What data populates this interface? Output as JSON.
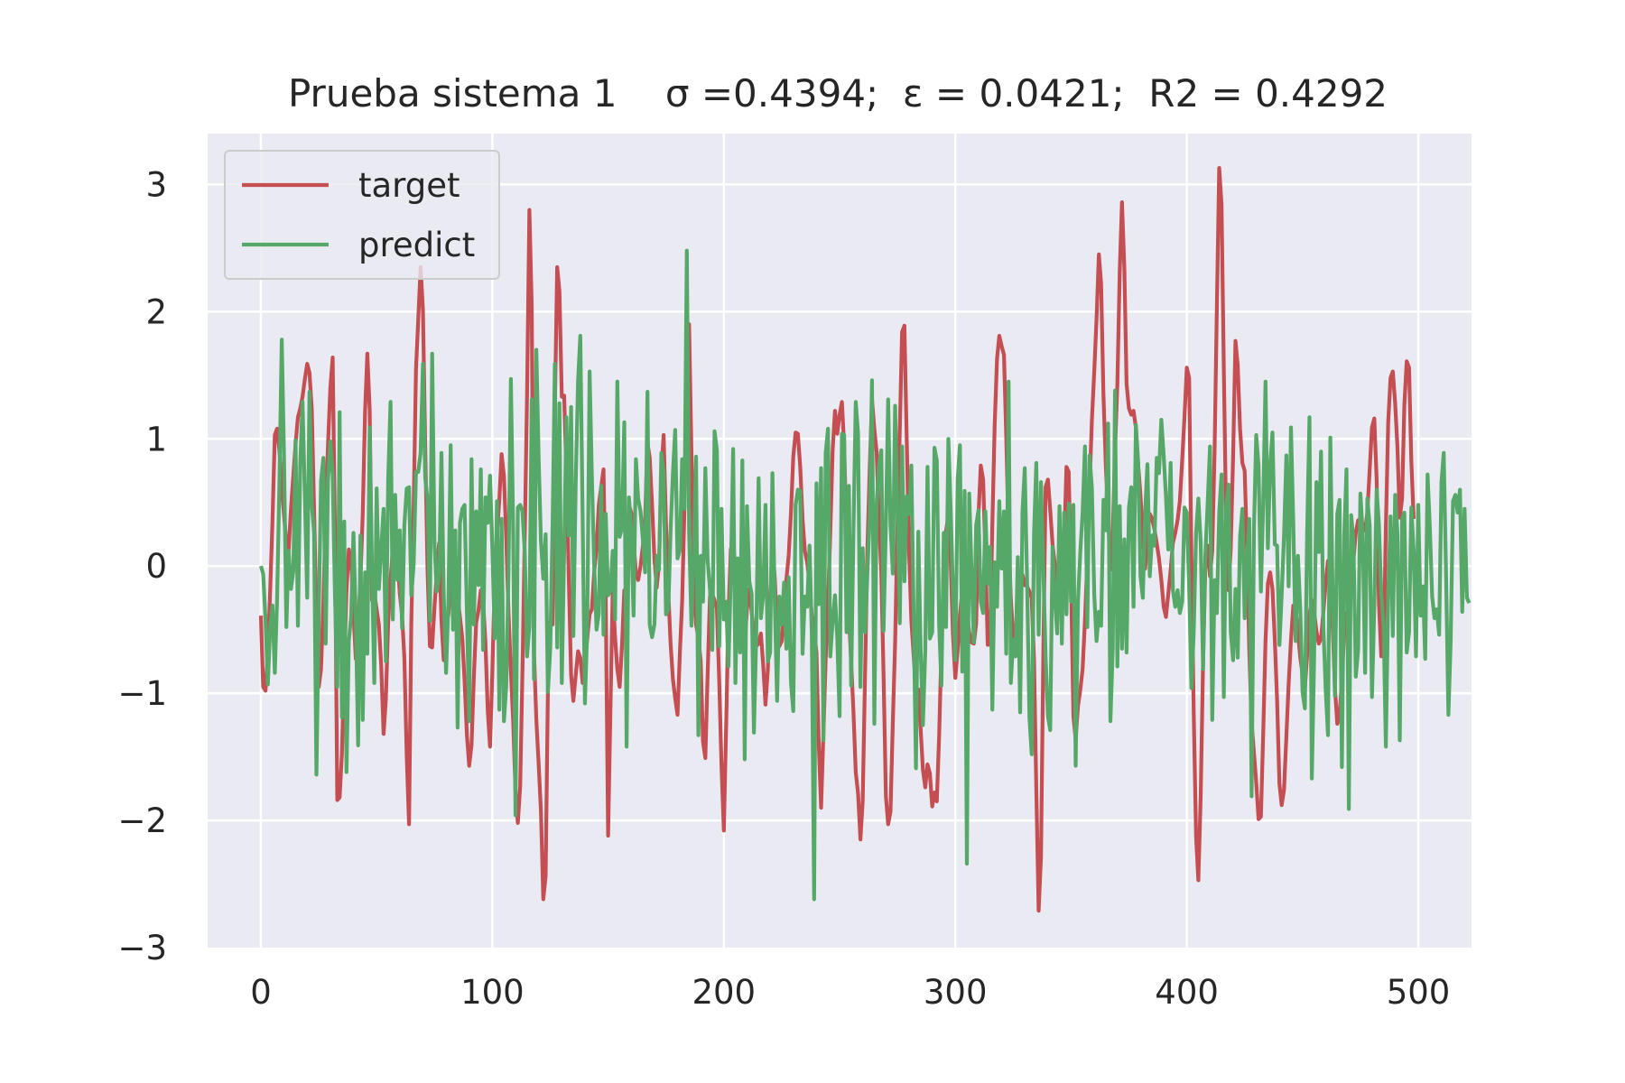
{
  "chart_data": {
    "type": "line",
    "title": "Prueba sistema 1    σ =0.4394;  ε = 0.0421;  R2 = 0.4292",
    "xlabel": "",
    "ylabel": "",
    "xlim": [
      -23,
      523
    ],
    "ylim": [
      -3,
      3.4
    ],
    "x_ticks": [
      0,
      100,
      200,
      300,
      400,
      500
    ],
    "x_tick_labels": [
      "0",
      "100",
      "200",
      "300",
      "400",
      "500"
    ],
    "y_ticks": [
      3,
      2,
      1,
      0,
      -1,
      -2,
      -3
    ],
    "y_tick_labels": [
      "3",
      "2",
      "1",
      "0",
      "−1",
      "−2",
      "−3"
    ],
    "grid": true,
    "legend_position": "top-left",
    "x_start": 0,
    "x_step": 1,
    "series": [
      {
        "name": "target",
        "color": "#c44e52",
        "values": [
          -0.39,
          -0.95,
          -0.98,
          -0.68,
          -0.21,
          0.35,
          1.03,
          1.08,
          0.91,
          0.62,
          0.4,
          0.18,
          0.12,
          0.45,
          0.71,
          0.96,
          1.17,
          1.24,
          1.33,
          1.47,
          1.59,
          1.52,
          1.23,
          0.45,
          -0.4,
          -0.95,
          -0.81,
          -0.3,
          0.44,
          0.95,
          1.4,
          1.64,
          0.28,
          -1.84,
          -1.82,
          -1.48,
          -0.81,
          -0.19,
          0.13,
          0.04,
          -0.36,
          -0.73,
          -0.48,
          -0.12,
          0.41,
          1.22,
          1.67,
          1.23,
          -0.27,
          -0.21,
          -0.34,
          -0.46,
          -0.79,
          -1.32,
          -1.05,
          -0.44,
          -0.11,
          0.13,
          0.21,
          0.08,
          -0.21,
          -0.39,
          -0.72,
          -1.49,
          -2.03,
          -0.45,
          0.46,
          1.55,
          1.94,
          2.35,
          2.01,
          0.94,
          -0.04,
          -0.63,
          -0.64,
          -0.32,
          -0.06,
          0.18,
          -0.43,
          -0.74,
          -0.49,
          -0.38,
          -0.11,
          0.18,
          0.08,
          -0.24,
          -0.4,
          -0.57,
          -0.9,
          -1.33,
          -1.57,
          -1.41,
          -0.87,
          -0.45,
          -0.35,
          -0.19,
          -0.27,
          -0.6,
          -1.14,
          -1.42,
          -0.83,
          -0.1,
          0.25,
          0.52,
          0.88,
          0.71,
          0.21,
          -0.37,
          -0.83,
          -1.23,
          -1.77,
          -2.02,
          -1.73,
          -0.83,
          0.25,
          1.34,
          2.8,
          2.04,
          -0.68,
          -1.21,
          -1.56,
          -1.93,
          -2.62,
          -2.44,
          -0.98,
          -0.44,
          -0.46,
          1.24,
          2.35,
          2.16,
          1.33,
          1.34,
          0.74,
          -0.08,
          -0.86,
          -1.06,
          -0.86,
          -0.67,
          -0.72,
          -0.92,
          -0.79,
          -0.57,
          -0.38,
          -0.34,
          -0.05,
          0.15,
          0.48,
          0.62,
          0.76,
          -0.29,
          -2.12,
          -1.12,
          -0.2,
          -0.56,
          -0.81,
          -0.95,
          -0.62,
          -0.19,
          -0.24,
          0.48,
          0.42,
          0.19,
          -0.05,
          -0.11,
          0.0,
          0.16,
          0.37,
          0.97,
          0.85,
          0.48,
          0.06,
          -0.17,
          0.02,
          0.75,
          1.03,
          0.33,
          -0.21,
          -0.61,
          -0.89,
          -1.04,
          -1.17,
          -0.68,
          -0.28,
          0.47,
          1.36,
          1.9,
          0.9,
          -0.05,
          -0.46,
          -0.56,
          -0.75,
          -1.38,
          -1.51,
          -0.86,
          -0.24,
          -0.22,
          -0.27,
          -0.33,
          -0.91,
          -1.57,
          -2.08,
          -1.24,
          -0.39,
          0.13,
          0.21,
          -0.05,
          -0.33,
          -0.54,
          -0.64,
          -0.61,
          -0.34,
          -0.18,
          -0.36,
          -0.53,
          -0.63,
          -0.61,
          -0.53,
          -0.78,
          -1.09,
          -0.82,
          -0.3,
          0.12,
          -0.09,
          -0.51,
          -0.63,
          -0.59,
          -0.36,
          -0.11,
          0.08,
          0.43,
          0.86,
          1.05,
          1.04,
          0.78,
          0.37,
          0.12,
          0.03,
          -0.13,
          -0.39,
          -0.51,
          -0.68,
          -1.39,
          -1.9,
          -1.32,
          -0.73,
          -0.28,
          0.26,
          0.91,
          1.22,
          1.04,
          1.19,
          1.29,
          0.94,
          0.23,
          -0.38,
          -0.75,
          -1.15,
          -1.62,
          -1.79,
          -2.15,
          -1.85,
          -0.86,
          0.13,
          0.75,
          1.31,
          1.08,
          0.9,
          0.36,
          -0.05,
          -0.85,
          -1.81,
          -2.03,
          -1.93,
          -1.22,
          -0.61,
          0.31,
          1.07,
          1.84,
          1.89,
          0.99,
          0.13,
          -0.43,
          -0.71,
          -0.98,
          -0.97,
          -1.27,
          -1.6,
          -1.74,
          -1.56,
          -1.63,
          -1.89,
          -1.78,
          -1.85,
          -1.33,
          -0.65,
          -0.08,
          0.27,
          0.4,
          0.03,
          -0.54,
          -0.88,
          -0.66,
          -0.38,
          -0.2,
          -0.13,
          -0.36,
          -0.52,
          -0.6,
          -0.61,
          -0.45,
          0.39,
          0.79,
          0.68,
          0.11,
          -0.62,
          -0.61,
          0.32,
          1.11,
          1.63,
          1.81,
          1.73,
          1.66,
          1.02,
          0.23,
          -0.26,
          -0.55,
          -0.69,
          -0.53,
          -0.25,
          -0.07,
          -0.15,
          -0.16,
          -0.2,
          -0.25,
          -0.74,
          -1.75,
          -2.71,
          -2.28,
          -0.73,
          0.62,
          0.68,
          0.44,
          0.17,
          0.01,
          -0.12,
          -0.27,
          -0.24,
          0.15,
          0.78,
          0.74,
          -0.11,
          -1.18,
          -1.36,
          -1.1,
          -0.97,
          -0.81,
          -0.43,
          0.05,
          0.62,
          1.15,
          1.53,
          1.94,
          2.45,
          2.22,
          1.34,
          0.79,
          0.41,
          -0.03,
          0.24,
          0.91,
          1.43,
          2.31,
          2.86,
          2.35,
          1.43,
          1.24,
          1.19,
          1.22,
          1.09,
          0.79,
          0.56,
          0.21,
          -0.02,
          0.25,
          0.41,
          0.37,
          0.29,
          0.18,
          0.06,
          -0.11,
          -0.32,
          -0.4,
          -0.22,
          -0.03,
          0.18,
          0.26,
          0.36,
          0.51,
          0.83,
          1.18,
          1.56,
          1.48,
          0.07,
          -1.16,
          -2.13,
          -2.47,
          -1.81,
          -0.77,
          -0.02,
          0.16,
          -0.08,
          0.12,
          0.91,
          2.03,
          3.13,
          2.84,
          1.56,
          0.33,
          -0.19,
          0.14,
          0.86,
          1.77,
          1.58,
          1.08,
          0.81,
          0.75,
          0.14,
          -0.66,
          -1.23,
          -1.47,
          -1.7,
          -1.99,
          -1.97,
          -1.33,
          -0.59,
          -0.14,
          -0.05,
          -0.18,
          -0.58,
          -1.05,
          -1.71,
          -1.88,
          -1.76,
          -1.34,
          -0.93,
          -0.58,
          -0.31,
          -0.34,
          -0.52,
          -0.72,
          -0.85,
          -0.96,
          -0.7,
          -0.38,
          -0.27,
          -0.36,
          -0.51,
          -0.61,
          -0.57,
          -0.36,
          -0.13,
          0.04,
          -0.08,
          -0.48,
          -0.96,
          -1.24,
          -1.18,
          -0.89,
          -0.52,
          -0.37,
          -0.33,
          -0.2,
          0.05,
          0.26,
          0.36,
          0.34,
          0.33,
          0.28,
          0.42,
          0.76,
          1.09,
          1.16,
          0.68,
          -0.29,
          -0.71,
          -0.66,
          0.3,
          1.13,
          1.48,
          1.53,
          1.28,
          0.94,
          0.38,
          0.53,
          1.27,
          1.61,
          1.56,
          0.83,
          0.37
        ]
      },
      {
        "name": "predict",
        "color": "#55a868",
        "values": [
          0.0,
          -0.06,
          -0.42,
          -0.93,
          -0.49,
          -0.31,
          -0.84,
          -0.27,
          0.65,
          1.78,
          0.87,
          -0.48,
          0.12,
          -0.18,
          -0.04,
          0.99,
          -0.47,
          0.81,
          1.29,
          0.55,
          -0.25,
          1.37,
          0.48,
          0.26,
          -1.64,
          -0.39,
          0.67,
          0.85,
          -0.61,
          0.67,
          0.98,
          0.72,
          -0.22,
          -0.95,
          1.21,
          -1.19,
          0.35,
          -1.62,
          -0.59,
          -0.39,
          0.26,
          -0.4,
          -1.41,
          0.24,
          -1.21,
          -0.05,
          -0.69,
          1.09,
          -0.04,
          -0.92,
          0.61,
          -0.18,
          0.14,
          0.45,
          -0.75,
          0.68,
          1.29,
          -0.42,
          0.56,
          -0.11,
          0.28,
          -0.49,
          0.32,
          0.61,
          0.62,
          -0.23,
          0.01,
          0.74,
          0.74,
          0.89,
          1.59,
          0.69,
          0.52,
          -0.43,
          1.67,
          0.17,
          -0.2,
          -0.07,
          0.89,
          -0.22,
          -0.84,
          -0.28,
          0.95,
          -0.5,
          0.28,
          -1.27,
          0.34,
          0.45,
          0.48,
          -0.37,
          -1.22,
          0.84,
          -0.46,
          0.43,
          -0.15,
          0.76,
          -0.66,
          0.54,
          0.34,
          0.71,
          0.14,
          -0.57,
          0.51,
          -1.13,
          0.37,
          -1.22,
          -0.94,
          -0.03,
          1.47,
          0.26,
          -1.96,
          0.46,
          0.48,
          0.43,
          0.11,
          -0.71,
          -0.47,
          1.31,
          -0.89,
          1.7,
          0.84,
          0.19,
          -0.1,
          0.25,
          -0.99,
          -0.65,
          0.32,
          1.59,
          -0.64,
          1.28,
          -0.92,
          0.12,
          1.17,
          0.24,
          1.25,
          -0.55,
          0.65,
          1.45,
          1.81,
          0.38,
          -1.08,
          -0.48,
          1.53,
          0.71,
          0.0,
          -0.5,
          -0.37,
          0.63,
          -0.54,
          0.41,
          -0.23,
          -0.19,
          0.12,
          -0.42,
          1.45,
          0.23,
          0.3,
          1.13,
          -1.42,
          0.54,
          0.28,
          -0.39,
          0.84,
          0.53,
          0.43,
          0.21,
          -0.05,
          1.37,
          -0.46,
          -0.56,
          -0.46,
          0.08,
          -0.03,
          0.89,
          0.74,
          -0.38,
          -0.34,
          0.28,
          0.73,
          1.07,
          0.06,
          0.13,
          0.84,
          0.45,
          2.48,
          0.27,
          -0.47,
          0.12,
          0.86,
          -1.33,
          0.08,
          -0.28,
          0.77,
          0.05,
          -0.18,
          -0.66,
          1.06,
          0.91,
          -0.63,
          0.45,
          -0.42,
          -0.28,
          -0.79,
          -0.09,
          0.92,
          -0.92,
          0.06,
          -0.68,
          0.83,
          -1.52,
          0.47,
          -0.12,
          -0.22,
          -1.31,
          -0.54,
          0.69,
          -0.41,
          -0.23,
          0.48,
          -0.75,
          -0.68,
          0.73,
          -0.28,
          -1.06,
          -0.24,
          -0.46,
          -0.13,
          -0.65,
          -0.09,
          -0.92,
          -1.14,
          0.48,
          0.6,
          0.59,
          -0.69,
          -0.24,
          -0.32,
          0.16,
          -0.53,
          -2.62,
          0.65,
          -0.3,
          0.77,
          -1.37,
          0.89,
          1.08,
          -0.71,
          -0.44,
          -0.23,
          -0.56,
          -1.18,
          1.04,
          1.03,
          -0.52,
          0.63,
          -0.94,
          0.29,
          1.29,
          1.04,
          -0.95,
          0.14,
          -0.52,
          -0.06,
          0.38,
          1.46,
          -1.24,
          0.48,
          0.79,
          0.91,
          -0.51,
          0.32,
          1.31,
          0.32,
          -0.06,
          1.26,
          0.46,
          -0.45,
          0.94,
          -0.12,
          0.55,
          0.41,
          0.79,
          -0.42,
          -1.59,
          0.27,
          -0.63,
          -1.25,
          -0.67,
          0.78,
          -0.57,
          -0.52,
          0.93,
          0.83,
          -0.46,
          -0.94,
          0.26,
          -0.48,
          1.0,
          0.44,
          -0.21,
          -0.74,
          0.68,
          0.95,
          -0.83,
          0.59,
          -2.34,
          0.57,
          -0.05,
          -0.6,
          0.32,
          0.44,
          -0.28,
          -0.37,
          0.43,
          -0.14,
          0.15,
          -1.13,
          0.03,
          -0.32,
          0.51,
          -0.02,
          0.43,
          -0.69,
          1.45,
          -0.92,
          -0.58,
          -0.71,
          0.07,
          -1.15,
          0.43,
          0.77,
          -0.12,
          -1.19,
          -1.48,
          0.26,
          0.81,
          -0.54,
          0.66,
          0.01,
          -0.71,
          -1.18,
          -1.29,
          0.15,
          -0.25,
          -0.53,
          0.47,
          -0.61,
          0.42,
          -0.38,
          0.49,
          -0.28,
          0.48,
          -1.57,
          -0.27,
          0.12,
          0.42,
          0.94,
          -0.48,
          0.87,
          0.61,
          -0.22,
          -0.59,
          -0.36,
          -0.47,
          0.52,
          0.28,
          1.12,
          -1.22,
          -0.65,
          1.38,
          -0.79,
          0.47,
          -0.65,
          0.21,
          -0.68,
          0.46,
          0.62,
          -0.32,
          1.11,
          0.81,
          -0.08,
          -0.25,
          0.44,
          0.8,
          -0.08,
          0.24,
          0.16,
          0.85,
          0.73,
          1.15,
          0.87,
          0.55,
          0.13,
          0.81,
          -0.19,
          -0.32,
          -0.19,
          -0.37,
          -0.28,
          0.46,
          0.42,
          -0.16,
          -0.96,
          -0.52,
          0.26,
          0.53,
          0.19,
          -0.81,
          0.08,
          0.49,
          0.94,
          -1.21,
          -0.11,
          -0.37,
          0.42,
          0.72,
          -1.03,
          0.47,
          0.64,
          -0.52,
          -0.74,
          -0.18,
          -0.72,
          0.23,
          0.45,
          -0.41,
          0.05,
          0.37,
          -1.81,
          0.29,
          1.03,
          0.79,
          -0.2,
          0.48,
          1.45,
          0.14,
          0.79,
          1.05,
          0.17,
          0.16,
          -0.62,
          -0.23,
          0.24,
          0.87,
          -0.16,
          1.09,
          0.33,
          -0.59,
          0.08,
          -0.34,
          -0.99,
          -1.12,
          0.27,
          1.17,
          -1.67,
          -0.74,
          0.66,
          0.11,
          0.9,
          -0.48,
          -0.98,
          -1.33,
          1.01,
          -0.26,
          -1.02,
          0.41,
          0.52,
          -1.58,
          0.24,
          0.76,
          -1.91,
          0.4,
          0.2,
          -0.87,
          -0.66,
          0.57,
          0.26,
          -0.84,
          0.53,
          0.32,
          -1.03,
          -0.33,
          0.6,
          0.33,
          -0.22,
          -0.46,
          -1.42,
          -0.23,
          0.39,
          -0.55,
          0.56,
          0.26,
          -1.37,
          0.37,
          0.42,
          -0.68,
          -0.52,
          0.46,
          0.12,
          -0.71,
          0.48,
          -0.39,
          -0.16,
          -0.73,
          0.72,
          0.31,
          -0.24,
          -0.41,
          -0.34,
          -0.54,
          0.66,
          0.89,
          -0.07,
          -1.17,
          -0.59,
          0.51,
          0.56,
          0.42,
          0.6,
          -0.36,
          0.45,
          -0.25,
          -0.29
        ]
      }
    ]
  }
}
